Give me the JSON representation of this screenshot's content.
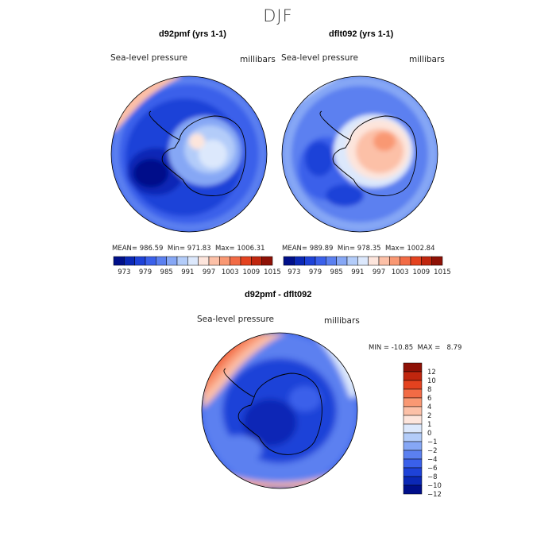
{
  "title": "DJF",
  "colors": {
    "palette": [
      "#000f8a",
      "#0b28b6",
      "#1e42d8",
      "#3a60ea",
      "#5b80f0",
      "#86a7f5",
      "#b3ccf9",
      "#dce8fc",
      "#fde5dc",
      "#fcc0a7",
      "#f99873",
      "#f26b45",
      "#e4421f",
      "#c0260e",
      "#8e1106"
    ]
  },
  "panels": [
    {
      "title": "d92pmf (yrs 1-1)",
      "variable": "Sea-level pressure",
      "units": "millibars",
      "stats": {
        "mean_label": "MEAN=",
        "mean": "986.59",
        "min_label": "Min=",
        "min": "971.83",
        "max_label": "Max=",
        "max": "1006.31"
      },
      "colorbar_ticks": [
        "973",
        "979",
        "985",
        "991",
        "997",
        "1003",
        "1009",
        "1015"
      ]
    },
    {
      "title": "dflt092 (yrs 1-1)",
      "variable": "Sea-level pressure",
      "units": "millibars",
      "stats": {
        "mean_label": "MEAN=",
        "mean": "989.89",
        "min_label": "Min=",
        "min": "978.35",
        "max_label": "Max=",
        "max": "1002.84"
      },
      "colorbar_ticks": [
        "973",
        "979",
        "985",
        "991",
        "997",
        "1003",
        "1009",
        "1015"
      ]
    },
    {
      "title": "d92pmf - dflt092",
      "variable": "Sea-level pressure",
      "units": "millibars",
      "stats": {
        "min_label": "MIN =",
        "min": "-10.85",
        "max_label": "MAX =",
        "max": "8.79"
      },
      "colorbar_ticks": [
        "12",
        "10",
        "8",
        "6",
        "4",
        "2",
        "1",
        "0",
        "−1",
        "−2",
        "−4",
        "−6",
        "−8",
        "−10",
        "−12"
      ]
    }
  ],
  "chart_data": [
    {
      "type": "heatmap",
      "title": "d92pmf (yrs 1-1)",
      "projection": "south polar stereographic",
      "variable": "Sea-level pressure",
      "units": "millibars",
      "mean": 986.59,
      "min": 971.83,
      "max": 1006.31,
      "levels": [
        973,
        976,
        979,
        982,
        985,
        988,
        991,
        994,
        997,
        1000,
        1003,
        1006,
        1009,
        1012,
        1015
      ]
    },
    {
      "type": "heatmap",
      "title": "dflt092 (yrs 1-1)",
      "projection": "south polar stereographic",
      "variable": "Sea-level pressure",
      "units": "millibars",
      "mean": 989.89,
      "min": 978.35,
      "max": 1002.84,
      "levels": [
        973,
        976,
        979,
        982,
        985,
        988,
        991,
        994,
        997,
        1000,
        1003,
        1006,
        1009,
        1012,
        1015
      ]
    },
    {
      "type": "heatmap",
      "title": "d92pmf - dflt092",
      "projection": "south polar stereographic",
      "variable": "Sea-level pressure",
      "units": "millibars",
      "min": -10.85,
      "max": 8.79,
      "levels": [
        -12,
        -10,
        -8,
        -6,
        -4,
        -2,
        -1,
        0,
        1,
        2,
        4,
        6,
        8,
        10,
        12
      ]
    }
  ]
}
